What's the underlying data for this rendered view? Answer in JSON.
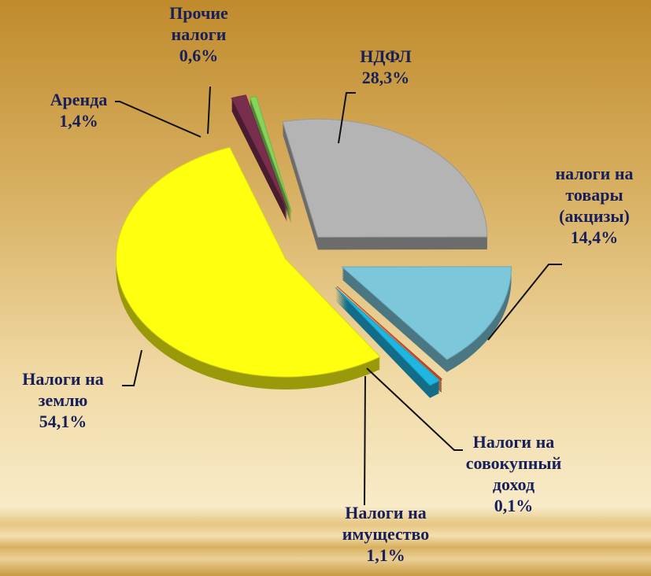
{
  "chart_data": {
    "type": "pie",
    "categories": [
      "НДФЛ",
      "налоги на товары (акцизы)",
      "Налоги на совокупный доход",
      "Налоги на имущество",
      "Налоги на землю",
      "Аренда",
      "Прочие налоги"
    ],
    "values": [
      28.3,
      14.4,
      0.1,
      1.1,
      54.1,
      1.4,
      0.6
    ],
    "value_labels": [
      "28,3%",
      "14,4%",
      "0,1%",
      "1,1%",
      "54,1%",
      "1,4%",
      "0,6%"
    ],
    "colors": [
      "#b4b4b4",
      "#7cc7d9",
      "#e0502c",
      "#1fb6e2",
      "#ffff10",
      "#7a2e4e",
      "#86d45a"
    ]
  }
}
